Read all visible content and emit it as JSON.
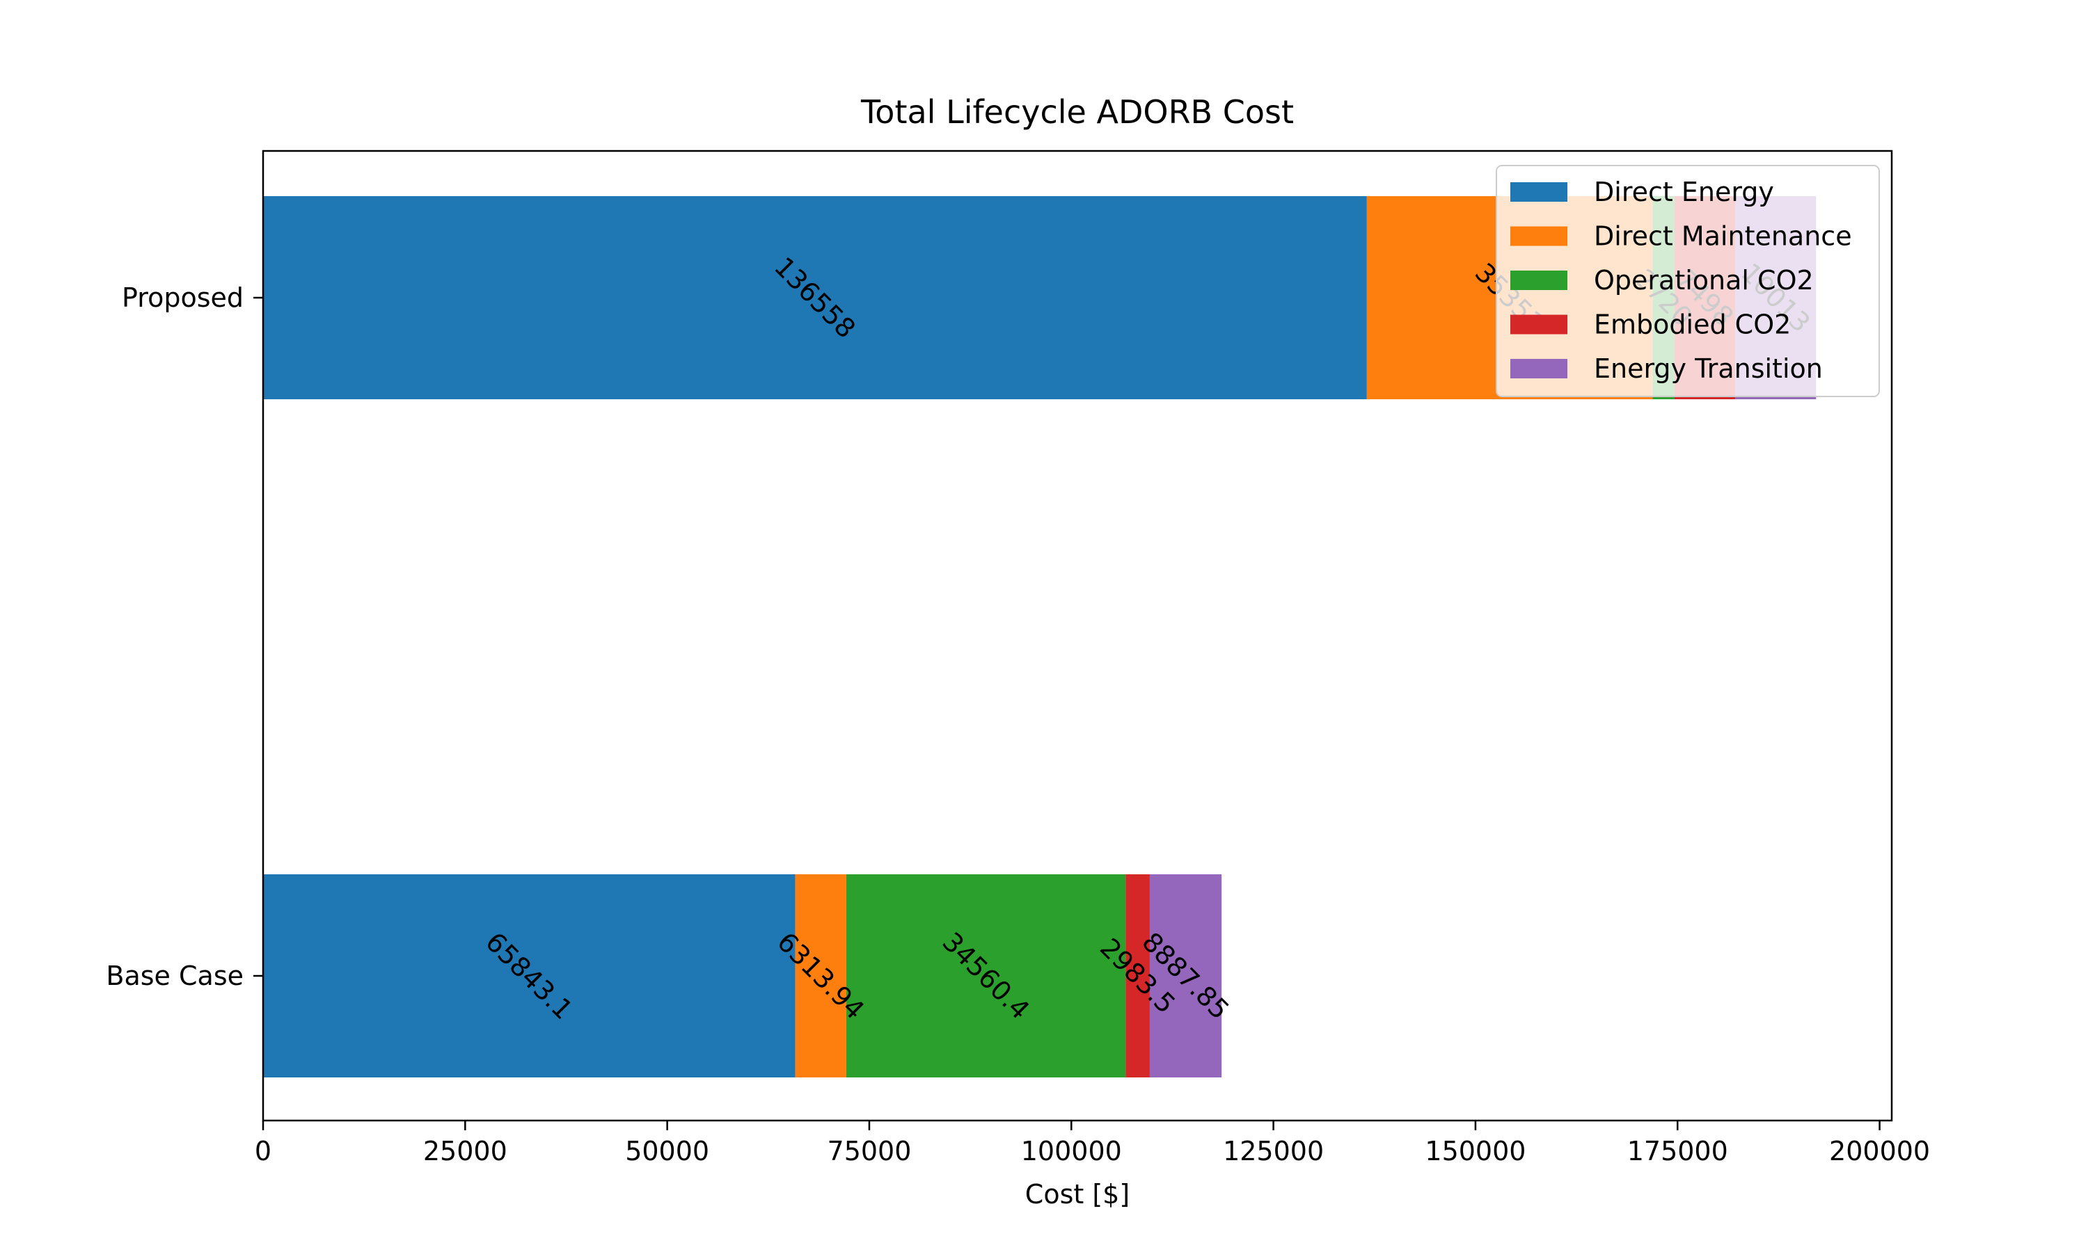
{
  "chart_data": {
    "type": "bar",
    "orientation": "horizontal",
    "stacked": true,
    "title": "Total Lifecycle ADORB Cost",
    "xlabel": "Cost [$]",
    "ylabel": "",
    "xlim": [
      0,
      201500
    ],
    "xticks": [
      0,
      25000,
      50000,
      75000,
      100000,
      125000,
      150000,
      175000,
      200000
    ],
    "categories": [
      "Base Case",
      "Proposed"
    ],
    "series": [
      {
        "name": "Direct Energy",
        "color": "#1f77b4",
        "values": [
          65843.1,
          136558
        ],
        "labels": [
          "65843.1",
          "136558"
        ]
      },
      {
        "name": "Direct Maintenance",
        "color": "#ff7f0e",
        "values": [
          6313.94,
          35351
        ],
        "labels": [
          "6313.94",
          "35351"
        ]
      },
      {
        "name": "Operational CO2",
        "color": "#2ca02c",
        "values": [
          34560.4,
          2720
        ],
        "labels": [
          "34560.4",
          "2720"
        ]
      },
      {
        "name": "Embodied CO2",
        "color": "#d62728",
        "values": [
          2983.5,
          7498
        ],
        "labels": [
          "2983.5",
          "7498"
        ]
      },
      {
        "name": "Energy Transition",
        "color": "#9467bd",
        "values": [
          8887.85,
          10013
        ],
        "labels": [
          "8887.85",
          "10013"
        ]
      }
    ],
    "legend": {
      "position": "top-right"
    },
    "grid": false
  }
}
